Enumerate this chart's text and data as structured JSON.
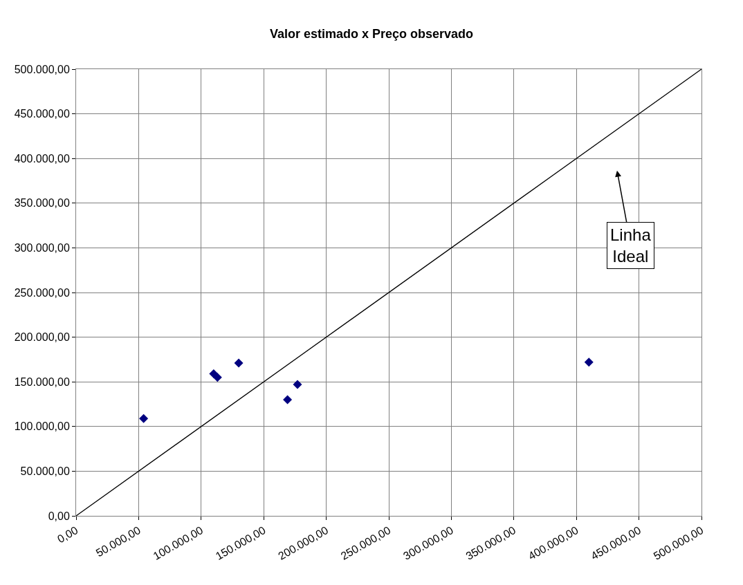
{
  "chart_data": {
    "type": "scatter",
    "title": "Valor estimado x Preço observado",
    "xlim": [
      0,
      500000
    ],
    "ylim": [
      0,
      500000
    ],
    "xticks": [
      {
        "value": 0,
        "label": "0,00"
      },
      {
        "value": 50000,
        "label": "50.000,00"
      },
      {
        "value": 100000,
        "label": "100.000,00"
      },
      {
        "value": 150000,
        "label": "150.000,00"
      },
      {
        "value": 200000,
        "label": "200.000,00"
      },
      {
        "value": 250000,
        "label": "250.000,00"
      },
      {
        "value": 300000,
        "label": "300.000,00"
      },
      {
        "value": 350000,
        "label": "350.000,00"
      },
      {
        "value": 400000,
        "label": "400.000,00"
      },
      {
        "value": 450000,
        "label": "450.000,00"
      },
      {
        "value": 500000,
        "label": "500.000,00"
      }
    ],
    "yticks": [
      {
        "value": 0,
        "label": "0,00"
      },
      {
        "value": 50000,
        "label": "50.000,00"
      },
      {
        "value": 100000,
        "label": "100.000,00"
      },
      {
        "value": 150000,
        "label": "150.000,00"
      },
      {
        "value": 200000,
        "label": "200.000,00"
      },
      {
        "value": 250000,
        "label": "250.000,00"
      },
      {
        "value": 300000,
        "label": "300.000,00"
      },
      {
        "value": 350000,
        "label": "350.000,00"
      },
      {
        "value": 400000,
        "label": "400.000,00"
      },
      {
        "value": 450000,
        "label": "450.000,00"
      },
      {
        "value": 500000,
        "label": "500.000,00"
      }
    ],
    "grid": true,
    "series": [
      {
        "marker": "diamond",
        "color": "#000080",
        "x": [
          54000,
          110000,
          113000,
          130000,
          169000,
          177000,
          410000
        ],
        "values": [
          109000,
          159000,
          155000,
          171000,
          130000,
          147000,
          172000
        ]
      },
      {
        "type": "line",
        "marker": "none",
        "line_style": "solid",
        "color": "#000000",
        "x": [
          0,
          500000
        ],
        "values": [
          0,
          500000
        ]
      }
    ],
    "annotations": [
      "Linha Ideal"
    ]
  }
}
